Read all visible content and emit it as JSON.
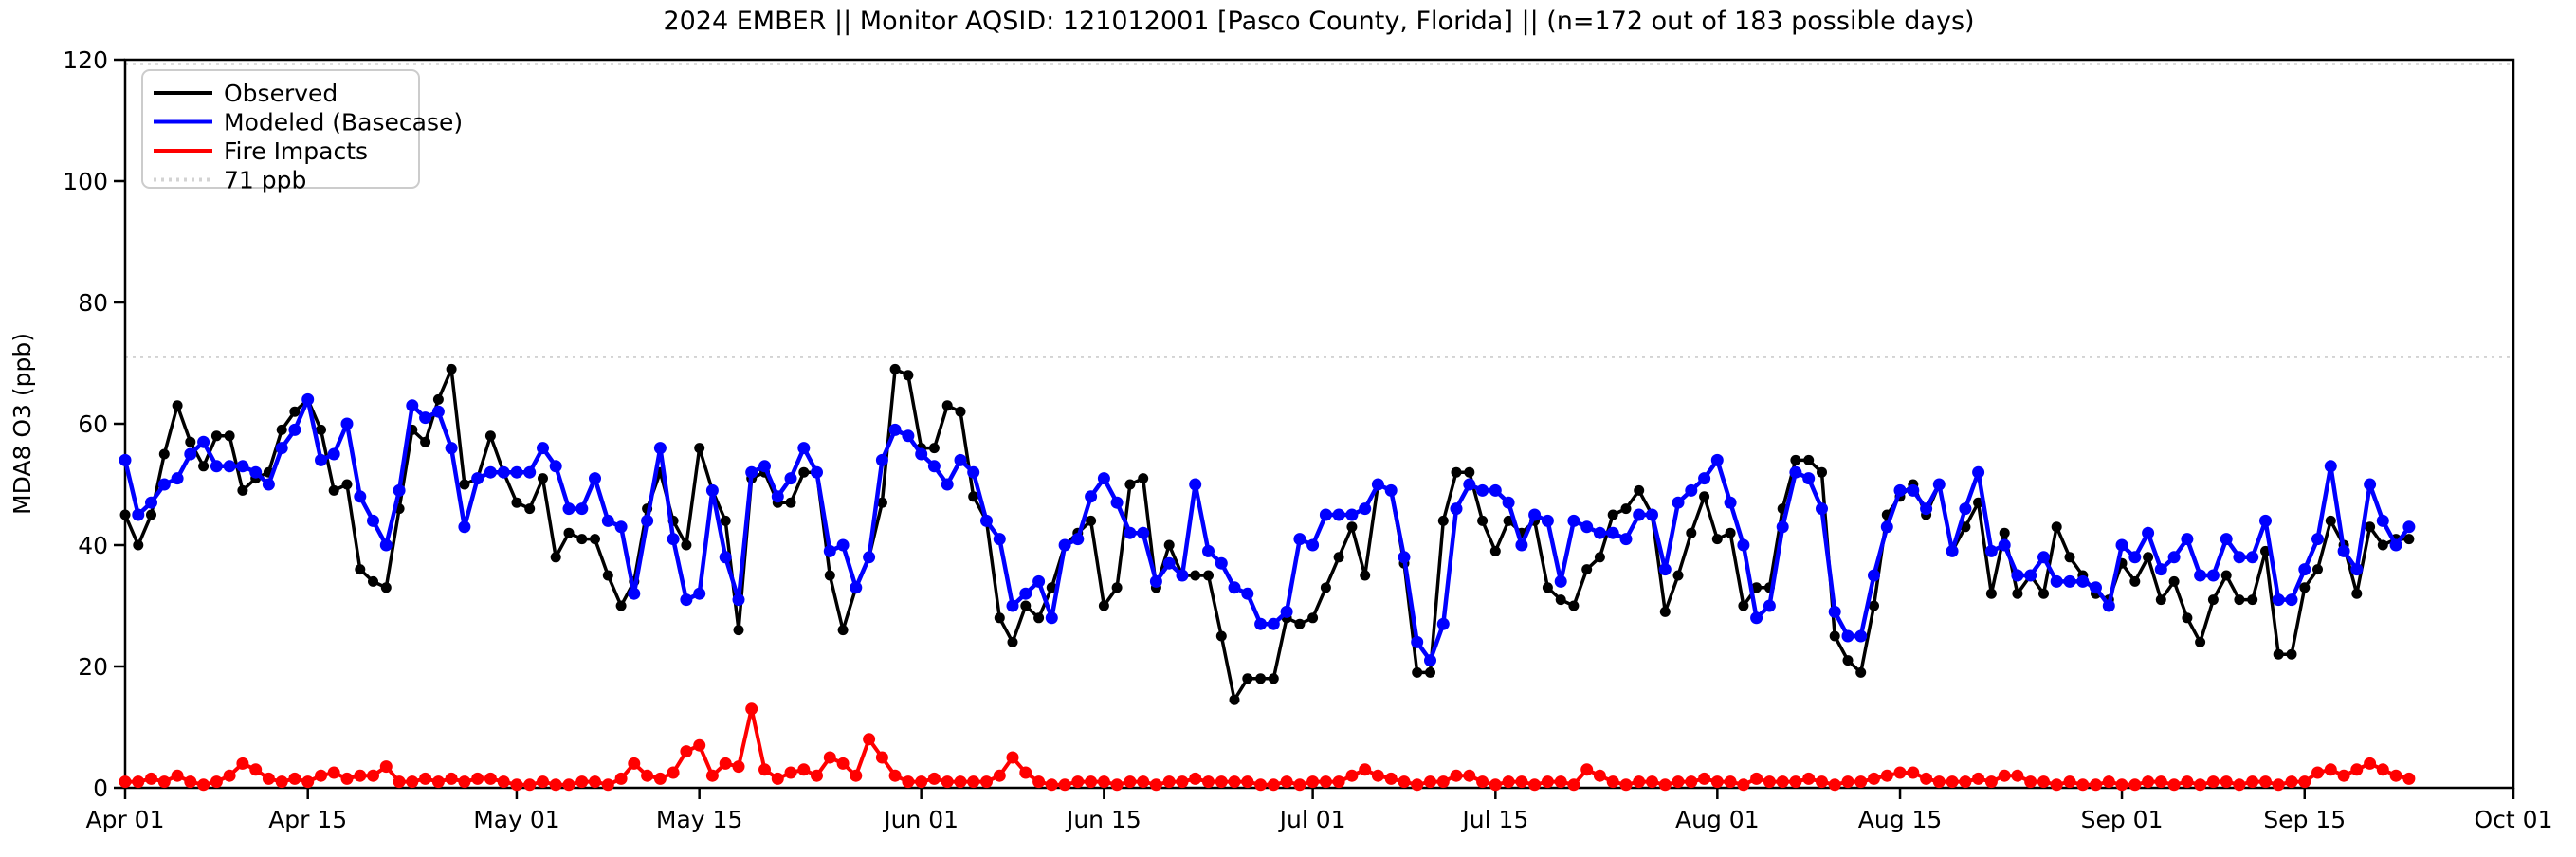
{
  "header": {
    "title": "2024 EMBER || Monitor AQSID: 121012001 [Pasco County, Florida] || (n=172 out of 183 possible days)"
  },
  "chart_data": {
    "type": "line",
    "title": "2024 EMBER || Monitor AQSID: 121012001 [Pasco County, Florida] || (n=172 out of 183 possible days)",
    "xlabel": "",
    "ylabel": "MDA8 O3 (ppb)",
    "ylim": [
      0,
      120
    ],
    "yticks": [
      0,
      20,
      40,
      60,
      80,
      100,
      120
    ],
    "x_total_days": 183,
    "xticks": [
      {
        "label": "Apr 01",
        "day": 0
      },
      {
        "label": "Apr 15",
        "day": 14
      },
      {
        "label": "May 01",
        "day": 30
      },
      {
        "label": "May 15",
        "day": 44
      },
      {
        "label": "Jun 01",
        "day": 61
      },
      {
        "label": "Jun 15",
        "day": 75
      },
      {
        "label": "Jul 01",
        "day": 91
      },
      {
        "label": "Jul 15",
        "day": 105
      },
      {
        "label": "Aug 01",
        "day": 122
      },
      {
        "label": "Aug 15",
        "day": 136
      },
      {
        "label": "Sep 01",
        "day": 153
      },
      {
        "label": "Sep 15",
        "day": 167
      },
      {
        "label": "Oct 01",
        "day": 183
      }
    ],
    "grid": false,
    "legend_position": "upper-left",
    "threshold": {
      "value": 71,
      "label": "71 ppb",
      "color": "#d3d3d3",
      "style": "dotted"
    },
    "top_reference_line": {
      "value": 119.3,
      "color": "#d3d3d3",
      "style": "dotted"
    },
    "dates": [
      "Apr 01",
      "Apr 02",
      "Apr 03",
      "Apr 04",
      "Apr 05",
      "Apr 06",
      "Apr 07",
      "Apr 08",
      "Apr 09",
      "Apr 10",
      "Apr 11",
      "Apr 12",
      "Apr 13",
      "Apr 14",
      "Apr 15",
      "Apr 16",
      "Apr 17",
      "Apr 18",
      "Apr 19",
      "Apr 20",
      "Apr 21",
      "Apr 22",
      "Apr 23",
      "Apr 24",
      "Apr 25",
      "Apr 26",
      "Apr 27",
      "Apr 28",
      "Apr 29",
      "Apr 30",
      "May 01",
      "May 02",
      "May 03",
      "May 04",
      "May 05",
      "May 06",
      "May 07",
      "May 08",
      "May 09",
      "May 10",
      "May 11",
      "May 12",
      "May 13",
      "May 14",
      "May 15",
      "May 16",
      "May 17",
      "May 18",
      "May 19",
      "May 20",
      "May 21",
      "May 22",
      "May 23",
      "May 24",
      "May 25",
      "May 26",
      "May 27",
      "May 28",
      "May 29",
      "May 30",
      "May 31",
      "Jun 01",
      "Jun 02",
      "Jun 03",
      "Jun 04",
      "Jun 05",
      "Jun 06",
      "Jun 07",
      "Jun 08",
      "Jun 09",
      "Jun 10",
      "Jun 11",
      "Jun 12",
      "Jun 13",
      "Jun 14",
      "Jun 15",
      "Jun 16",
      "Jun 17",
      "Jun 18",
      "Jun 19",
      "Jun 20",
      "Jun 21",
      "Jun 22",
      "Jun 23",
      "Jun 24",
      "Jun 25",
      "Jun 26",
      "Jun 27",
      "Jun 28",
      "Jun 29",
      "Jun 30",
      "Jul 01",
      "Jul 02",
      "Jul 03",
      "Jul 04",
      "Jul 05",
      "Jul 06",
      "Jul 07",
      "Jul 08",
      "Jul 09",
      "Jul 10",
      "Jul 11",
      "Jul 12",
      "Jul 13",
      "Jul 14",
      "Jul 15",
      "Jul 16",
      "Jul 17",
      "Jul 18",
      "Jul 19",
      "Jul 20",
      "Jul 21",
      "Jul 22",
      "Jul 23",
      "Jul 24",
      "Jul 25",
      "Jul 26",
      "Jul 27",
      "Jul 28",
      "Jul 29",
      "Jul 30",
      "Jul 31",
      "Aug 01",
      "Aug 02",
      "Aug 03",
      "Aug 04",
      "Aug 05",
      "Aug 06",
      "Aug 07",
      "Aug 08",
      "Aug 09",
      "Aug 10",
      "Aug 11",
      "Aug 12",
      "Aug 13",
      "Aug 14",
      "Aug 15",
      "Aug 16",
      "Aug 17",
      "Aug 18",
      "Aug 19",
      "Aug 20",
      "Aug 21",
      "Aug 22",
      "Aug 23",
      "Aug 24",
      "Aug 25",
      "Aug 26",
      "Aug 27",
      "Aug 28",
      "Aug 29",
      "Aug 30",
      "Aug 31",
      "Sep 01",
      "Sep 02",
      "Sep 03",
      "Sep 04",
      "Sep 05",
      "Sep 06",
      "Sep 07",
      "Sep 08",
      "Sep 09",
      "Sep 10",
      "Sep 11",
      "Sep 12",
      "Sep 13",
      "Sep 14",
      "Sep 15",
      "Sep 16",
      "Sep 17",
      "Sep 18",
      "Sep 19",
      "Sep 20",
      "Sep 21",
      "Sep 22",
      "Sep 23"
    ],
    "series": [
      {
        "name": "Observed",
        "color": "#000000",
        "line_width": 3.5,
        "marker_radius": 5.5,
        "values": [
          45,
          40,
          45,
          55,
          63,
          57,
          53,
          58,
          58,
          49,
          51,
          52,
          59,
          62,
          64,
          59,
          49,
          50,
          36,
          34,
          33,
          46,
          59,
          57,
          64,
          69,
          50,
          51,
          58,
          52,
          47,
          46,
          51,
          38,
          42,
          41,
          41,
          35,
          30,
          34,
          46,
          52,
          44,
          40,
          56,
          49,
          44,
          26,
          51,
          52,
          47,
          47,
          52,
          52,
          35,
          26,
          33,
          38,
          47,
          69,
          68,
          56,
          56,
          63,
          62,
          48,
          44,
          28,
          24,
          30,
          28,
          33,
          40,
          42,
          44,
          30,
          33,
          50,
          51,
          33,
          40,
          35,
          35,
          35,
          25,
          14.5,
          18,
          18,
          18,
          28,
          27,
          28,
          33,
          38,
          43,
          35,
          50,
          49,
          37,
          19,
          19,
          44,
          52,
          52,
          44,
          39,
          44,
          42,
          44,
          33,
          31,
          30,
          36,
          38,
          45,
          46,
          49,
          45,
          29,
          35,
          42,
          48,
          41,
          42,
          30,
          33,
          33,
          46,
          54,
          54,
          52,
          25,
          21,
          19,
          30,
          45,
          48,
          50,
          45,
          50,
          39,
          43,
          47,
          32,
          42,
          32,
          35,
          32,
          43,
          38,
          35,
          32,
          31,
          37,
          34,
          38,
          31,
          34,
          28,
          24,
          31,
          35,
          31,
          31,
          39,
          22,
          22,
          33,
          36,
          44,
          40,
          32,
          43,
          40,
          41,
          41
        ]
      },
      {
        "name": "Modeled (Basecase)",
        "color": "#0000ff",
        "line_width": 4.5,
        "marker_radius": 6.5,
        "values": [
          54,
          45,
          47,
          50,
          51,
          55,
          57,
          53,
          53,
          53,
          52,
          50,
          56,
          59,
          64,
          54,
          55,
          60,
          48,
          44,
          40,
          49,
          63,
          61,
          62,
          56,
          43,
          51,
          52,
          52,
          52,
          52,
          56,
          53,
          46,
          46,
          51,
          44,
          43,
          32,
          44,
          56,
          41,
          31,
          32,
          49,
          38,
          31,
          52,
          53,
          48,
          51,
          56,
          52,
          39,
          40,
          33,
          38,
          54,
          59,
          58,
          55,
          53,
          50,
          54,
          52,
          44,
          41,
          30,
          32,
          34,
          28,
          40,
          41,
          48,
          51,
          47,
          42,
          42,
          34,
          37,
          35,
          50,
          39,
          37,
          33,
          32,
          27,
          27,
          29,
          41,
          40,
          45,
          45,
          45,
          46,
          50,
          49,
          38,
          24,
          21,
          27,
          46,
          50,
          49,
          49,
          47,
          40,
          45,
          44,
          34,
          44,
          43,
          42,
          42,
          41,
          45,
          45,
          36,
          47,
          49,
          51,
          54,
          47,
          40,
          28,
          30,
          43,
          52,
          51,
          46,
          29,
          25,
          25,
          35,
          43,
          49,
          49,
          46,
          50,
          39,
          46,
          52,
          39,
          40,
          35,
          35,
          38,
          34,
          34,
          34,
          33,
          30,
          40,
          38,
          42,
          36,
          38,
          41,
          35,
          35,
          41,
          38,
          38,
          44,
          31,
          31,
          36,
          41,
          53,
          39,
          36,
          50,
          44,
          40,
          43
        ]
      },
      {
        "name": "Fire Impacts",
        "color": "#ff0000",
        "line_width": 4,
        "marker_radius": 6.5,
        "values": [
          1,
          1,
          1.5,
          1,
          2,
          1,
          0.5,
          1,
          2,
          4,
          3,
          1.5,
          1,
          1.5,
          1,
          2,
          2.5,
          1.5,
          2,
          2,
          3.5,
          1,
          1,
          1.5,
          1,
          1.5,
          1,
          1.5,
          1.5,
          1,
          0.5,
          0.5,
          1,
          0.5,
          0.5,
          1,
          1,
          0.5,
          1.5,
          4,
          2,
          1.5,
          2.5,
          6,
          7,
          2,
          4,
          3.5,
          13,
          3,
          1.5,
          2.5,
          3,
          2,
          5,
          4,
          2,
          8,
          5,
          2,
          1,
          1,
          1.5,
          1,
          1,
          1,
          1,
          2,
          5,
          2.5,
          1,
          0.5,
          0.5,
          1,
          1,
          1,
          0.5,
          1,
          1,
          0.5,
          1,
          1,
          1.5,
          1,
          1,
          1,
          1,
          0.5,
          0.5,
          1,
          0.5,
          1,
          1,
          1,
          2,
          3,
          2,
          1.5,
          1,
          0.5,
          1,
          1,
          2,
          2,
          1,
          0.5,
          1,
          1,
          0.5,
          1,
          1,
          0.5,
          3,
          2,
          1,
          0.5,
          1,
          1,
          0.5,
          1,
          1,
          1.5,
          1,
          1,
          0.5,
          1.5,
          1,
          1,
          1,
          1.5,
          1,
          0.5,
          1,
          1,
          1.5,
          2,
          2.5,
          2.5,
          1.5,
          1,
          1,
          1,
          1.5,
          1,
          2,
          2,
          1,
          1,
          0.5,
          1,
          0.5,
          0.5,
          1,
          0.5,
          0.5,
          1,
          1,
          0.5,
          1,
          0.5,
          1,
          1,
          0.5,
          1,
          1,
          0.5,
          1,
          1,
          2.5,
          3,
          2,
          3,
          4,
          3,
          2,
          1.5
        ]
      }
    ]
  },
  "legend": {
    "entries": [
      {
        "label": "Observed",
        "color": "#000000",
        "style": "solid"
      },
      {
        "label": "Modeled (Basecase)",
        "color": "#0000ff",
        "style": "solid"
      },
      {
        "label": "Fire Impacts",
        "color": "#ff0000",
        "style": "solid"
      },
      {
        "label": "71 ppb",
        "color": "#d3d3d3",
        "style": "dotted"
      }
    ]
  },
  "colors": {
    "observed": "#000000",
    "modeled": "#0000ff",
    "fire": "#ff0000",
    "threshold": "#d3d3d3",
    "legend_border": "#cccccc",
    "background": "#ffffff"
  }
}
